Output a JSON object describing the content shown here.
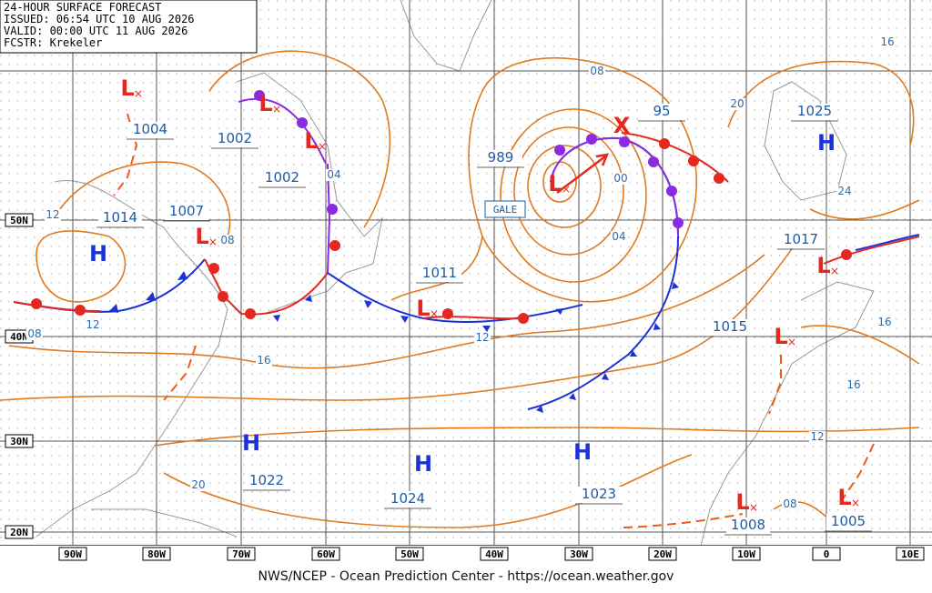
{
  "header": {
    "lines": [
      "24-HOUR SURFACE FORECAST",
      "ISSUED: 06:54 UTC 10 AUG 2026",
      "VALID:  00:00 UTC 11 AUG 2026",
      "FCSTR:  Krekeler"
    ]
  },
  "footer": "NWS/NCEP - Ocean Prediction Center - https://ocean.weather.gov",
  "gale": "GALE",
  "latitudes": [
    "50N",
    "40N",
    "30N",
    "20N"
  ],
  "longitudes": [
    "90W",
    "80W",
    "70W",
    "60W",
    "50W",
    "40W",
    "30W",
    "20W",
    "10W",
    "0",
    "10E"
  ],
  "centers": [
    {
      "symbol": "L",
      "value": "1004"
    },
    {
      "symbol": "L",
      "value": "1002"
    },
    {
      "symbol": "L",
      "value": "1002"
    },
    {
      "symbol": "L",
      "value": "1007"
    },
    {
      "symbol": "H",
      "value": "1014"
    },
    {
      "symbol": "L",
      "value": "1011"
    },
    {
      "symbol": "L",
      "value": "989"
    },
    {
      "symbol": "X",
      "value": "95"
    },
    {
      "symbol": "H",
      "value": "1025"
    },
    {
      "symbol": "L",
      "value": "1017"
    },
    {
      "symbol": "L",
      "value": "1015"
    },
    {
      "symbol": "H",
      "value": "1022"
    },
    {
      "symbol": "H",
      "value": "1024"
    },
    {
      "symbol": "H",
      "value": "1023"
    },
    {
      "symbol": "L",
      "value": "1008"
    },
    {
      "symbol": "L",
      "value": "1005"
    }
  ],
  "isobar_labels": [
    "08",
    "00",
    "04",
    "04",
    "08",
    "12",
    "12",
    "08",
    "12",
    "16",
    "20",
    "20",
    "24",
    "16",
    "16",
    "16",
    "12",
    "08"
  ]
}
